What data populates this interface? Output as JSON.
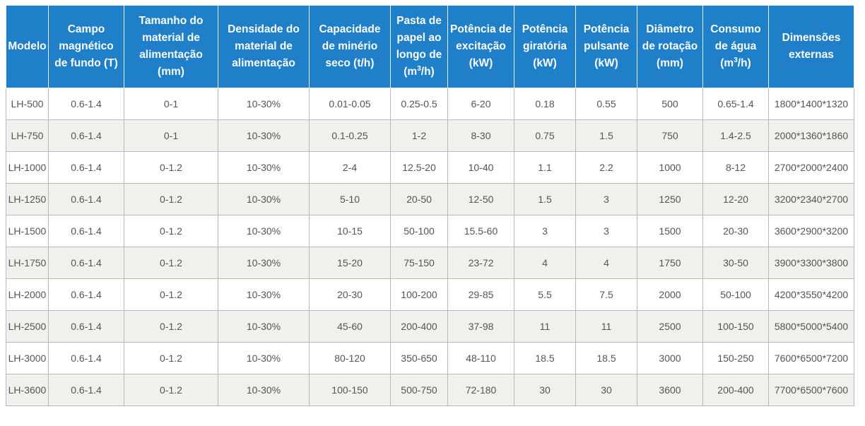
{
  "table": {
    "headers": [
      {
        "lines": [
          "Modelo"
        ]
      },
      {
        "lines": [
          "Campo",
          "magnético",
          "de fundo (T)"
        ]
      },
      {
        "lines": [
          "Tamanho do",
          "material de",
          "alimentação",
          "(mm)"
        ]
      },
      {
        "lines": [
          "Densidade do",
          "material de",
          "alimentação"
        ]
      },
      {
        "lines": [
          "Capacidade",
          "de minério",
          "seco (t/h)"
        ]
      },
      {
        "lines": [
          "Pasta de",
          "papel ao",
          "longo de"
        ],
        "unit": {
          "pre": "(m",
          "sup": "3",
          "post": "/h)"
        }
      },
      {
        "lines": [
          "Potência de",
          "excitação",
          "(kW)"
        ]
      },
      {
        "lines": [
          "Potência",
          "giratória",
          "(kW)"
        ]
      },
      {
        "lines": [
          "Potência",
          "pulsante",
          "(kW)"
        ]
      },
      {
        "lines": [
          "Diâmetro",
          "de rotação",
          "(mm)"
        ]
      },
      {
        "lines": [
          "Consumo",
          "de água"
        ],
        "unit": {
          "pre": "(m",
          "sup": "3",
          "post": "/h)"
        }
      },
      {
        "lines": [
          "Dimensões",
          "externas"
        ]
      }
    ],
    "rows": [
      [
        "LH-500",
        "0.6-1.4",
        "0-1",
        "10-30%",
        "0.01-0.05",
        "0.25-0.5",
        "6-20",
        "0.18",
        "0.55",
        "500",
        "0.65-1.4",
        "1800*1400*1320"
      ],
      [
        "LH-750",
        "0.6-1.4",
        "0-1",
        "10-30%",
        "0.1-0.25",
        "1-2",
        "8-30",
        "0.75",
        "1.5",
        "750",
        "1.4-2.5",
        "2000*1360*1860"
      ],
      [
        "LH-1000",
        "0.6-1.4",
        "0-1.2",
        "10-30%",
        "2-4",
        "12.5-20",
        "10-40",
        "1.1",
        "2.2",
        "1000",
        "8-12",
        "2700*2000*2400"
      ],
      [
        "LH-1250",
        "0.6-1.4",
        "0-1.2",
        "10-30%",
        "5-10",
        "20-50",
        "12-50",
        "1.5",
        "3",
        "1250",
        "12-20",
        "3200*2340*2700"
      ],
      [
        "LH-1500",
        "0.6-1.4",
        "0-1.2",
        "10-30%",
        "10-15",
        "50-100",
        "15.5-60",
        "3",
        "3",
        "1500",
        "20-30",
        "3600*2900*3200"
      ],
      [
        "LH-1750",
        "0.6-1.4",
        "0-1.2",
        "10-30%",
        "15-20",
        "75-150",
        "23-72",
        "4",
        "4",
        "1750",
        "30-50",
        "3900*3300*3800"
      ],
      [
        "LH-2000",
        "0.6-1.4",
        "0-1.2",
        "10-30%",
        "20-30",
        "100-200",
        "29-85",
        "5.5",
        "7.5",
        "2000",
        "50-100",
        "4200*3550*4200"
      ],
      [
        "LH-2500",
        "0.6-1.4",
        "0-1.2",
        "10-30%",
        "45-60",
        "200-400",
        "37-98",
        "11",
        "11",
        "2500",
        "100-150",
        "5800*5000*5400"
      ],
      [
        "LH-3000",
        "0.6-1.4",
        "0-1.2",
        "10-30%",
        "80-120",
        "350-650",
        "48-110",
        "18.5",
        "18.5",
        "3000",
        "150-250",
        "7600*6500*7200"
      ],
      [
        "LH-3600",
        "0.6-1.4",
        "0-1.2",
        "10-30%",
        "100-150",
        "500-750",
        "72-180",
        "30",
        "30",
        "3600",
        "200-400",
        "7700*6500*7600"
      ]
    ]
  },
  "colors": {
    "header_bg": "#1f7fc8",
    "header_text": "#ffffff",
    "row_alt_bg": "#f0f0ed",
    "cell_text": "#555555",
    "border": "#b9b9b9"
  }
}
